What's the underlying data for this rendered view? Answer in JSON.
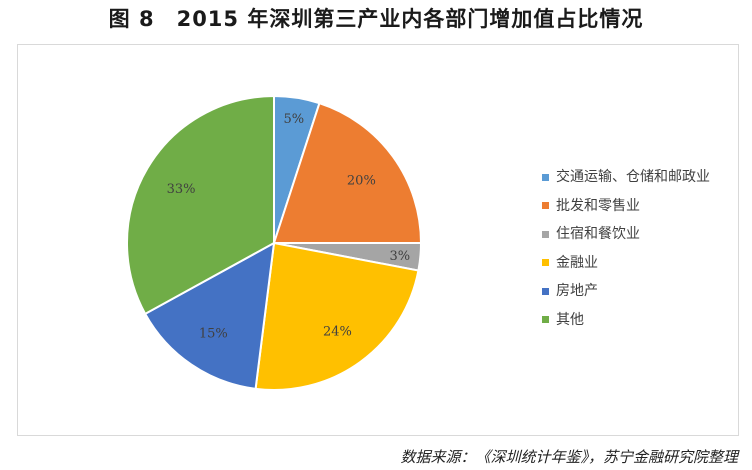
{
  "title": "图 8　2015 年深圳第三产业内各部门增加值占比情况",
  "source_note": "数据来源：《深圳统计年鉴》，苏宁金融研究院整理",
  "chart_data": {
    "type": "pie",
    "title": "图 8　2015 年深圳第三产业内各部门增加值占比情况",
    "slices": [
      {
        "label": "交通运输、仓储和邮政业",
        "value": 5,
        "display": "5%",
        "color": "#5B9BD5"
      },
      {
        "label": "批发和零售业",
        "value": 20,
        "display": "20%",
        "color": "#ED7D31"
      },
      {
        "label": "住宿和餐饮业",
        "value": 3,
        "display": "3%",
        "color": "#A5A5A5"
      },
      {
        "label": "金融业",
        "value": 24,
        "display": "24%",
        "color": "#FFC000"
      },
      {
        "label": "房地产",
        "value": 15,
        "display": "15%",
        "color": "#4472C4"
      },
      {
        "label": "其他",
        "value": 33,
        "display": "33%",
        "color": "#70AD47"
      }
    ],
    "legend_position": "right"
  }
}
